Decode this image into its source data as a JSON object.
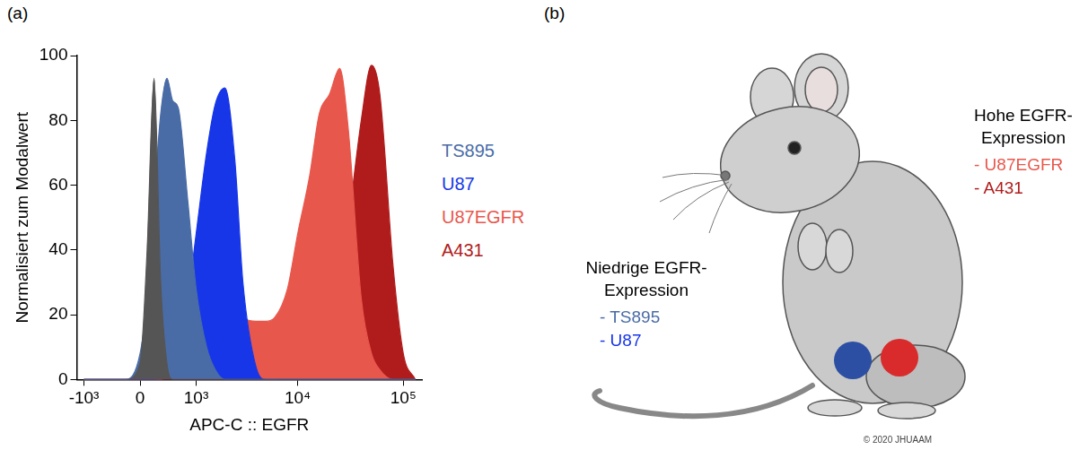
{
  "panel_labels": [
    "(a)",
    "(b)"
  ],
  "chart_data": {
    "type": "line",
    "x_label": "APC-C :: EGFR",
    "y_label": "Normalisiert zum Modalwert",
    "x": [
      -1000,
      -500,
      -200,
      0,
      100,
      200,
      300,
      400,
      500,
      600,
      800,
      1000,
      1300,
      1600,
      2000,
      2500,
      3000,
      4000,
      5000,
      6000,
      8000,
      10000,
      13000,
      16000,
      20000,
      25000,
      30000,
      40000,
      50000,
      60000,
      80000,
      100000,
      130000
    ],
    "series": [
      {
        "color": "#555555",
        "values": [
          0,
          0,
          0,
          5,
          40,
          93,
          30,
          5,
          0,
          0,
          0,
          0,
          0,
          0,
          0,
          0,
          0,
          0,
          0,
          0,
          0,
          0,
          0,
          0,
          0,
          0,
          0,
          0,
          0,
          0,
          0,
          0,
          0
        ]
      },
      {
        "name": "TS895",
        "color": "#4a6ca6",
        "values": [
          0,
          0,
          0,
          8,
          25,
          55,
          82,
          93,
          86,
          84,
          55,
          28,
          10,
          3,
          0,
          0,
          0,
          0,
          0,
          0,
          0,
          0,
          0,
          0,
          0,
          0,
          0,
          0,
          0,
          0,
          0,
          0,
          0
        ]
      },
      {
        "name": "U87",
        "color": "#1636e8",
        "values": [
          0,
          0,
          0,
          0,
          0,
          0,
          1,
          4,
          8,
          12,
          25,
          45,
          70,
          85,
          90,
          68,
          30,
          4,
          0,
          0,
          0,
          0,
          0,
          0,
          0,
          0,
          0,
          0,
          0,
          0,
          0,
          0,
          0
        ]
      },
      {
        "name": "U87EGFR",
        "color": "#e8574c",
        "values": [
          0,
          0,
          0,
          0,
          0,
          0,
          0,
          1,
          2,
          3,
          4,
          6,
          12,
          18,
          22,
          21,
          19,
          18,
          18,
          19,
          28,
          45,
          63,
          82,
          88,
          96,
          78,
          25,
          8,
          3,
          0,
          0,
          0
        ]
      },
      {
        "name": "A431",
        "color": "#b01c1c",
        "values": [
          0,
          0,
          0,
          0,
          0,
          0,
          0,
          0,
          0,
          0,
          0,
          0,
          0,
          0,
          0,
          0,
          0,
          0,
          0,
          0,
          1,
          3,
          6,
          10,
          18,
          32,
          48,
          80,
          97,
          88,
          35,
          8,
          0
        ]
      }
    ],
    "xlim": [
      -1200,
      150000
    ],
    "xticks": [
      {
        "value": -1000,
        "label": "-10³"
      },
      0,
      {
        "value": 1000,
        "label": "10³"
      },
      {
        "value": 10000,
        "label": "10⁴"
      },
      {
        "value": 100000,
        "label": "10⁵"
      }
    ],
    "ylim": [
      0,
      100
    ],
    "yticks": [
      0,
      20,
      40,
      60,
      80,
      100
    ],
    "grid": false,
    "legend": "right",
    "marker": "none"
  },
  "illustration": {
    "groups": [
      {
        "title": "Niedrige EGFR-Expression",
        "items": [
          {
            "text": "- TS895",
            "color": "#4a6ca6"
          },
          {
            "text": "- U87",
            "color": "#1636e8"
          }
        ]
      },
      {
        "title": "Hohe EGFR-Expression",
        "items": [
          {
            "text": "- U87EGFR",
            "color": "#e8574c"
          },
          {
            "text": "- A431",
            "color": "#b01c1c"
          }
        ]
      }
    ],
    "credit": "© 2020 JHUAAM"
  }
}
